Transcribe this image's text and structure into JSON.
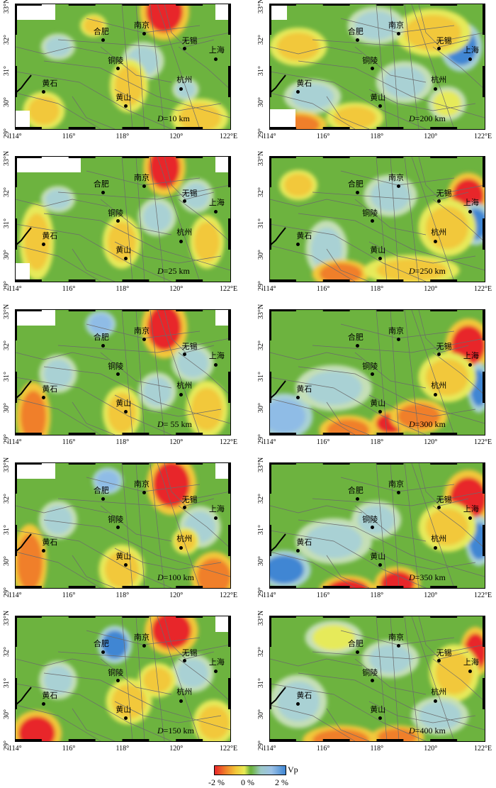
{
  "panels": [
    {
      "depth_label": "D",
      "depth_value": "=10 km"
    },
    {
      "depth_label": "D",
      "depth_value": "=200 km"
    },
    {
      "depth_label": "D",
      "depth_value": "=25 km"
    },
    {
      "depth_label": "D",
      "depth_value": "=250 km"
    },
    {
      "depth_label": "D",
      "depth_value": "= 55 km"
    },
    {
      "depth_label": "D",
      "depth_value": "=300 km"
    },
    {
      "depth_label": "D",
      "depth_value": "=100 km"
    },
    {
      "depth_label": "D",
      "depth_value": "=350 km"
    },
    {
      "depth_label": "D",
      "depth_value": "=150 km"
    },
    {
      "depth_label": "D",
      "depth_value": "=400 km"
    }
  ],
  "cities": [
    {
      "name": "合肥",
      "lon": 117.27,
      "lat": 31.86
    },
    {
      "name": "南京",
      "lon": 118.78,
      "lat": 32.06
    },
    {
      "name": "无锡",
      "lon": 120.3,
      "lat": 31.57
    },
    {
      "name": "上海",
      "lon": 121.47,
      "lat": 31.23
    },
    {
      "name": "铜陵",
      "lon": 117.81,
      "lat": 30.94
    },
    {
      "name": "黄石",
      "lon": 115.04,
      "lat": 30.2
    },
    {
      "name": "杭州",
      "lon": 120.16,
      "lat": 30.29
    },
    {
      "name": "黄山",
      "lon": 118.1,
      "lat": 29.74
    }
  ],
  "lat_labels": [
    "33°N",
    "32°",
    "31°",
    "30°",
    "29°"
  ],
  "lon_labels": [
    "114°",
    "116°",
    "118°",
    "120°",
    "122°E"
  ],
  "colorbar": {
    "title": "Vp",
    "ticks": [
      "-2 %",
      "0 %",
      "2 %"
    ],
    "colors": {
      "neg": "#e8262a",
      "zero": "#6db33f",
      "pos": "#3f86d3"
    }
  }
}
